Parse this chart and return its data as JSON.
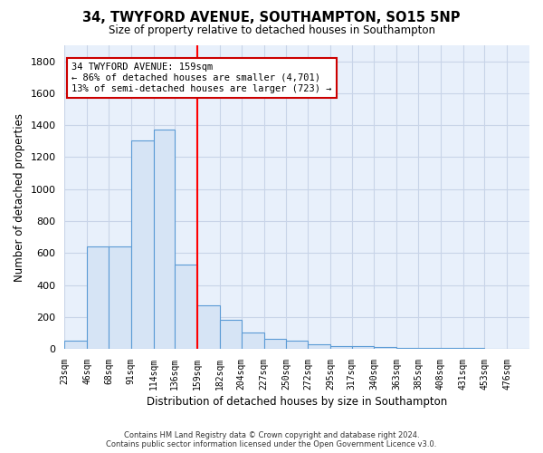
{
  "title1": "34, TWYFORD AVENUE, SOUTHAMPTON, SO15 5NP",
  "title2": "Size of property relative to detached houses in Southampton",
  "xlabel": "Distribution of detached houses by size in Southampton",
  "ylabel": "Number of detached properties",
  "footnote": "Contains HM Land Registry data © Crown copyright and database right 2024.\nContains public sector information licensed under the Open Government Licence v3.0.",
  "bar_edges": [
    23,
    46,
    68,
    91,
    114,
    136,
    159,
    182,
    204,
    227,
    250,
    272,
    295,
    317,
    340,
    363,
    385,
    408,
    431,
    453,
    476
  ],
  "bar_heights": [
    50,
    640,
    640,
    1305,
    1370,
    530,
    270,
    180,
    100,
    65,
    50,
    30,
    20,
    15,
    10,
    5,
    5,
    5,
    5,
    0,
    0
  ],
  "bar_color": "#d6e4f5",
  "bar_edge_color": "#5b9bd5",
  "bg_color": "#e8f0fb",
  "grid_color": "#c8d4e8",
  "red_line_x": 159,
  "annotation_text": "34 TWYFORD AVENUE: 159sqm\n← 86% of detached houses are smaller (4,701)\n13% of semi-detached houses are larger (723) →",
  "annotation_box_color": "#ffffff",
  "annotation_border_color": "#cc0000",
  "ylim": [
    0,
    1900
  ],
  "yticks": [
    0,
    200,
    400,
    600,
    800,
    1000,
    1200,
    1400,
    1600,
    1800
  ]
}
